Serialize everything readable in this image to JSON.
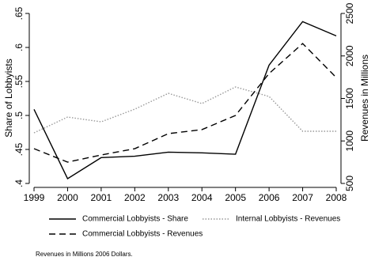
{
  "chart_data": {
    "type": "line",
    "x": [
      1999,
      2000,
      2001,
      2002,
      2003,
      2004,
      2005,
      2006,
      2007,
      2008
    ],
    "xlim": [
      1999,
      2008
    ],
    "xticks": [
      1999,
      2000,
      2001,
      2002,
      2003,
      2004,
      2005,
      2006,
      2007,
      2008
    ],
    "ylabel": "Share of Lobbyists",
    "y2label": "Revenues in Millions",
    "ylim": [
      0.4,
      0.65
    ],
    "yticks": [
      {
        "value": 0.4,
        "label": ".4"
      },
      {
        "value": 0.45,
        "label": ".45"
      },
      {
        "value": 0.5,
        "label": ".5"
      },
      {
        "value": 0.55,
        "label": ".55"
      },
      {
        "value": 0.6,
        "label": ".6"
      },
      {
        "value": 0.65,
        "label": ".65"
      }
    ],
    "y2lim": [
      500,
      2500
    ],
    "y2ticks": [
      500,
      1000,
      1500,
      2000,
      2500
    ],
    "series": [
      {
        "name": "Commercial Lobbyists - Share",
        "color": "#000000",
        "dash": "solid",
        "values": [
          0.509,
          0.407,
          0.438,
          0.44,
          0.446,
          0.445,
          0.443,
          0.574,
          0.638,
          0.617
        ]
      },
      {
        "name": "Internal Lobbyists - Revenues",
        "color": "#999999",
        "dash": "dotted",
        "axis": "y2",
        "values": [
          1095,
          1281,
          1225,
          1374,
          1560,
          1440,
          1635,
          1523,
          1114,
          1114
        ]
      },
      {
        "name": "Commercial Lobbyists - Revenues",
        "color": "#000000",
        "dash": "dashed",
        "axis": "y2",
        "values": [
          909,
          751,
          835,
          909,
          1086,
          1133,
          1300,
          1793,
          2146,
          1746
        ]
      }
    ],
    "legend": "bottom",
    "note": "Revenues in Millions 2006 Dollars."
  }
}
